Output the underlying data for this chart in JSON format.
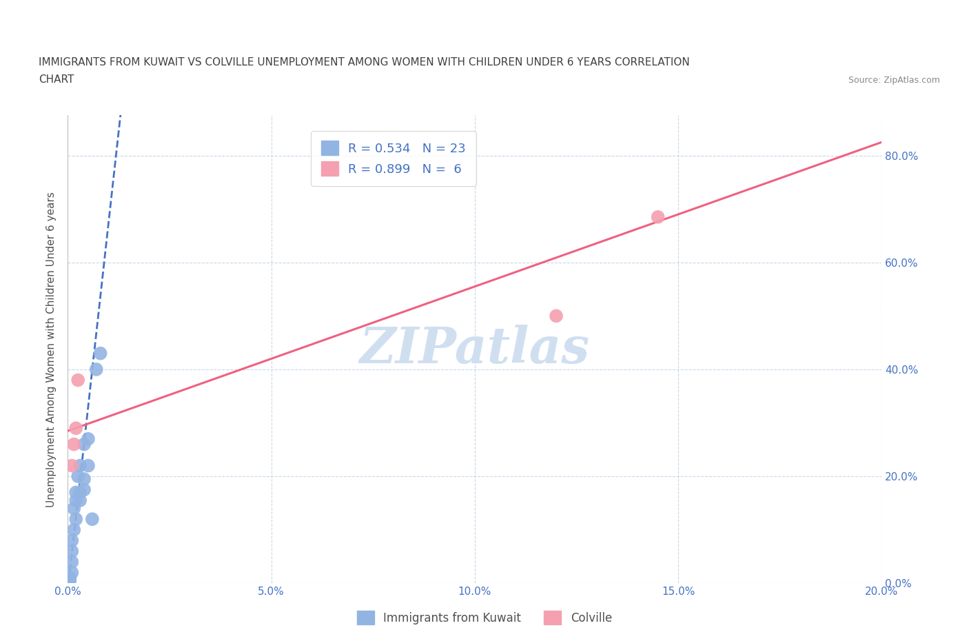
{
  "title_line1": "IMMIGRANTS FROM KUWAIT VS COLVILLE UNEMPLOYMENT AMONG WOMEN WITH CHILDREN UNDER 6 YEARS CORRELATION",
  "title_line2": "CHART",
  "source": "Source: ZipAtlas.com",
  "ylabel": "Unemployment Among Women with Children Under 6 years",
  "xlim": [
    0,
    0.2
  ],
  "ylim": [
    0,
    0.875
  ],
  "xticks": [
    0.0,
    0.05,
    0.1,
    0.15,
    0.2
  ],
  "yticks": [
    0.0,
    0.2,
    0.4,
    0.6,
    0.8
  ],
  "blue_color": "#92b4e3",
  "pink_color": "#f4a0b0",
  "blue_line_color": "#4472c4",
  "pink_line_color": "#f06080",
  "title_color": "#404040",
  "source_color": "#888888",
  "axis_label_color": "#4472c4",
  "grid_color": "#c8d8e8",
  "watermark_color": "#d0dff0",
  "legend_label1": "Immigrants from Kuwait",
  "legend_label2": "Colville",
  "blue_scatter_x": [
    0.0005,
    0.0005,
    0.001,
    0.001,
    0.001,
    0.001,
    0.0015,
    0.0015,
    0.002,
    0.002,
    0.002,
    0.0025,
    0.003,
    0.003,
    0.003,
    0.004,
    0.004,
    0.004,
    0.005,
    0.005,
    0.006,
    0.007,
    0.008
  ],
  "blue_scatter_y": [
    0.005,
    0.01,
    0.02,
    0.04,
    0.06,
    0.08,
    0.1,
    0.14,
    0.12,
    0.155,
    0.17,
    0.2,
    0.155,
    0.17,
    0.22,
    0.175,
    0.195,
    0.26,
    0.22,
    0.27,
    0.12,
    0.4,
    0.43
  ],
  "pink_scatter_x": [
    0.001,
    0.0015,
    0.002,
    0.0025,
    0.12,
    0.145
  ],
  "pink_scatter_y": [
    0.22,
    0.26,
    0.29,
    0.38,
    0.5,
    0.685
  ],
  "blue_line_x": [
    -0.002,
    0.013
  ],
  "blue_line_y": [
    -0.15,
    0.88
  ],
  "pink_line_x": [
    0.0,
    0.2
  ],
  "pink_line_y": [
    0.285,
    0.825
  ]
}
